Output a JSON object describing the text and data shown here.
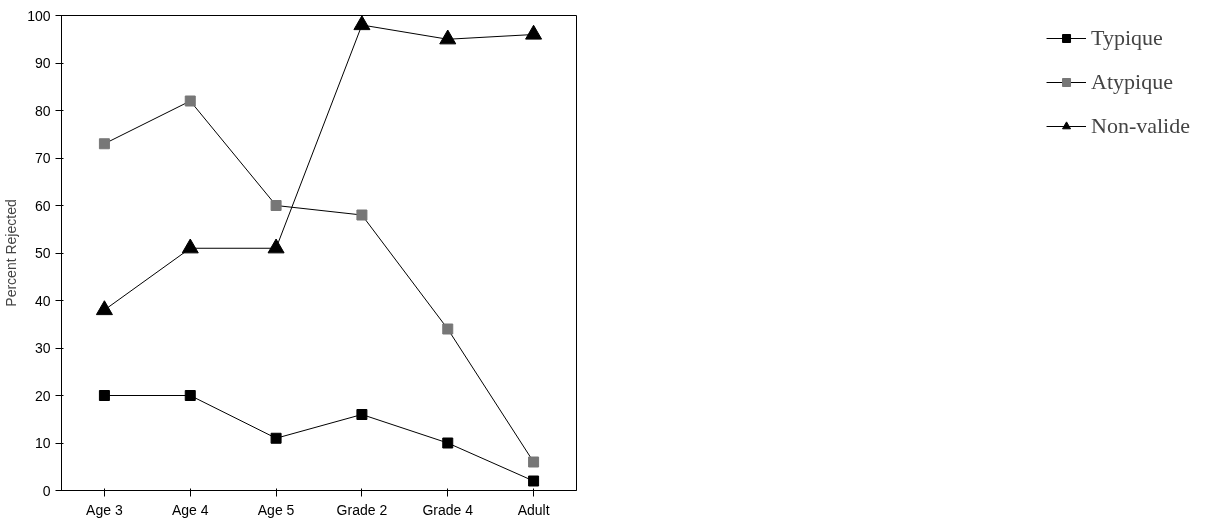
{
  "chart_data": {
    "type": "line",
    "ylabel": "Percent Rejected",
    "categories": [
      "Age 3",
      "Age 4",
      "Age 5",
      "Grade 2",
      "Grade 4",
      "Adult"
    ],
    "ylim": [
      0,
      100
    ],
    "yticks": [
      0,
      10,
      20,
      30,
      40,
      50,
      60,
      70,
      80,
      90,
      100
    ],
    "grid": false,
    "legend": "right",
    "line_style": "solid",
    "series": [
      {
        "name": "Typique",
        "color": "#000000",
        "marker": "square",
        "values": [
          20,
          20,
          11,
          16,
          10,
          2
        ]
      },
      {
        "name": "Atypique",
        "color": "#777777",
        "marker": "square",
        "values": [
          73,
          82,
          60,
          58,
          34,
          6
        ]
      },
      {
        "name": "Non-valide",
        "color": "#000000",
        "marker": "triangle",
        "values": [
          38,
          51,
          51,
          98,
          95,
          96
        ]
      }
    ]
  }
}
